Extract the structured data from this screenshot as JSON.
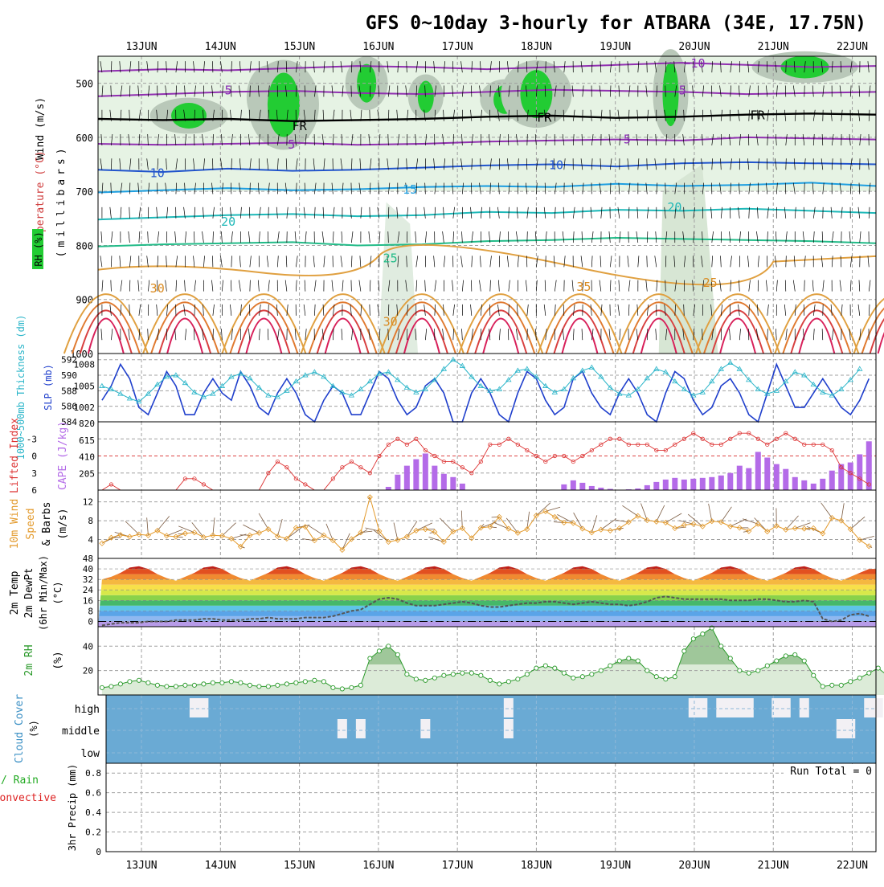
{
  "title": "GFS 0~10day 3-hourly for ATBARA (34E, 17.75N)",
  "dates": [
    "13JUN",
    "14JUN",
    "15JUN",
    "16JUN",
    "17JUN",
    "18JUN",
    "19JUN",
    "20JUN",
    "21JUN",
    "22JUN"
  ],
  "colors": {
    "grid": "#a0a0a0",
    "frame": "#000000",
    "rh_green": "#22cc33",
    "cloud": "#6aaad4",
    "cape": "#b46be8",
    "li": "#dd3333",
    "slp": "#1f3fcc",
    "thick": "#2ab5c9",
    "wind": "#e39a2c",
    "rh2m": "#2b9a2b",
    "precip_total": "#22aa22",
    "precip_conv": "#dd2222"
  },
  "panels": {
    "upper": {
      "label_wind": "Wind (m/s)",
      "label_temp": "Temperature (°C)",
      "label_rh": "RH (%)",
      "label_mb": "(millibars)",
      "ylim": [
        1000,
        450
      ],
      "ticks": [
        500,
        600,
        700,
        800,
        900,
        1000
      ],
      "contour_labels": [
        {
          "t": "−10",
          "day": 20.0,
          "p": 462
        },
        {
          "t": "5",
          "day": 14.1,
          "p": 512
        },
        {
          "t": "5",
          "day": 19.85,
          "p": 512
        },
        {
          "t": "FR",
          "day": 15.0,
          "p": 578
        },
        {
          "t": "FR",
          "day": 18.1,
          "p": 562
        },
        {
          "t": "FR",
          "day": 20.8,
          "p": 558
        },
        {
          "t": "5",
          "day": 14.9,
          "p": 612
        },
        {
          "t": "5",
          "day": 19.15,
          "p": 602
        },
        {
          "t": "10",
          "day": 13.2,
          "p": 665
        },
        {
          "t": "10",
          "day": 18.25,
          "p": 650
        },
        {
          "t": "15",
          "day": 16.4,
          "p": 695
        },
        {
          "t": "20",
          "day": 14.1,
          "p": 755
        },
        {
          "t": "20",
          "day": 19.75,
          "p": 728
        },
        {
          "t": "25",
          "day": 16.15,
          "p": 822
        },
        {
          "t": "25",
          "day": 20.2,
          "p": 868
        },
        {
          "t": "30",
          "day": 13.2,
          "p": 878
        },
        {
          "t": "35",
          "day": 18.6,
          "p": 875
        },
        {
          "t": "30",
          "day": 16.15,
          "p": 940
        }
      ],
      "isotherms": [
        {
          "color": "#9030b0",
          "p": [
            478,
            474,
            476,
            472,
            468,
            470,
            474,
            470,
            466,
            462,
            466,
            470,
            468
          ]
        },
        {
          "color": "#9030b0",
          "p": [
            524,
            520,
            516,
            514,
            518,
            520,
            516,
            512,
            514,
            516,
            520,
            518,
            516
          ]
        },
        {
          "color": "#000000",
          "p": [
            566,
            568,
            566,
            570,
            568,
            566,
            562,
            560,
            564,
            562,
            558,
            556,
            558
          ]
        },
        {
          "color": "#9030b0",
          "p": [
            612,
            614,
            612,
            610,
            614,
            612,
            608,
            606,
            604,
            606,
            600,
            602,
            604
          ]
        },
        {
          "color": "#2255cc",
          "p": [
            660,
            664,
            658,
            662,
            660,
            656,
            652,
            650,
            654,
            648,
            646,
            648,
            650
          ]
        },
        {
          "color": "#1e9ee0",
          "p": [
            702,
            698,
            694,
            698,
            696,
            692,
            690,
            692,
            686,
            690,
            688,
            684,
            690
          ]
        },
        {
          "color": "#1fb8b8",
          "p": [
            752,
            748,
            744,
            742,
            746,
            744,
            738,
            740,
            734,
            736,
            732,
            736,
            740
          ]
        },
        {
          "color": "#22bb88",
          "p": [
            802,
            798,
            796,
            794,
            800,
            798,
            792,
            790,
            786,
            788,
            790,
            792,
            796
          ]
        }
      ]
    },
    "slp": {
      "label_thick": "1000~500mb Thickness (dm)",
      "label_slp": "SLP (mb)",
      "left_ticks": [
        584,
        586,
        588,
        590,
        592
      ],
      "right_ticks": [
        1002,
        1005,
        1008
      ],
      "slp_values": [
        1003,
        1005,
        1008,
        1006,
        1002,
        1001,
        1004,
        1007,
        1005,
        1001,
        1001,
        1004,
        1006,
        1004,
        1003,
        1007,
        1005,
        1002,
        1001,
        1004,
        1006,
        1004,
        1001,
        1000,
        1003,
        1005,
        1004,
        1001,
        1001,
        1004,
        1007,
        1006,
        1003,
        1001,
        1002,
        1005,
        1006,
        1004,
        1000,
        1000,
        1004,
        1006,
        1004,
        1001,
        1000,
        1004,
        1007,
        1006,
        1003,
        1001,
        1002,
        1006,
        1007,
        1004,
        1002,
        1001,
        1004,
        1006,
        1004,
        1001,
        1000,
        1004,
        1007,
        1006,
        1003,
        1001,
        1002,
        1005,
        1006,
        1004,
        1001,
        1000,
        1004,
        1008,
        1005,
        1002,
        1002,
        1004,
        1006,
        1004,
        1002,
        1001,
        1003,
        1006
      ],
      "thick_values": [
        588.6,
        588.2,
        587.6,
        587.0,
        586.6,
        587.6,
        588.8,
        589.8,
        590.0,
        589.0,
        587.8,
        587.2,
        587.6,
        588.6,
        589.8,
        590.2,
        589.6,
        588.4,
        587.4,
        587.2,
        588.0,
        589.2,
        590.0,
        590.4,
        589.8,
        588.6,
        587.8,
        587.4,
        588.2,
        589.2,
        590.2,
        590.4,
        589.4,
        588.4,
        587.8,
        588.2,
        589.4,
        590.8,
        592.0,
        591.2,
        589.8,
        588.6,
        588.0,
        588.2,
        589.4,
        590.6,
        590.8,
        589.8,
        588.6,
        587.8,
        588.2,
        589.6,
        590.6,
        591.0,
        589.8,
        588.4,
        587.6,
        587.4,
        588.2,
        589.6,
        590.8,
        590.4,
        589.2,
        588.2,
        587.4,
        587.8,
        589.2,
        590.8,
        591.6,
        590.8,
        589.4,
        588.2,
        587.6,
        588.0,
        589.2,
        590.4,
        590.0,
        588.8,
        587.8,
        587.4,
        588.2,
        589.4,
        590.8
      ]
    },
    "cape": {
      "label_li": "Lifted Index",
      "label_cape": "CAPE (J/kg)",
      "li_ticks": [
        -3,
        0,
        3,
        6
      ],
      "cape_ticks": [
        205,
        410,
        615,
        820
      ],
      "li_values": [
        6,
        5,
        6,
        6,
        6,
        6,
        6,
        6,
        6,
        4,
        4,
        5,
        6,
        6,
        6,
        6,
        6,
        6,
        3,
        1,
        2,
        4,
        5,
        6,
        6,
        4,
        2,
        1,
        2,
        3,
        0,
        -2,
        -3,
        -2,
        -3,
        -1,
        0,
        1,
        1,
        2,
        3,
        1,
        -2,
        -2,
        -3,
        -2,
        -1,
        0,
        1,
        0,
        0,
        1,
        0,
        -1,
        -2,
        -3,
        -3,
        -2,
        -2,
        -2,
        -1,
        -1,
        -2,
        -3,
        -4,
        -3,
        -2,
        -2,
        -3,
        -4,
        -4,
        -3,
        -2,
        -3,
        -4,
        -3,
        -2,
        -2,
        -2,
        -1,
        2,
        3,
        4,
        5
      ],
      "cape_bars": [
        0,
        0,
        0,
        0,
        0,
        0,
        0,
        0,
        0,
        0,
        0,
        0,
        0,
        0,
        0,
        0,
        0,
        0,
        0,
        0,
        0,
        0,
        0,
        0,
        0,
        0,
        0,
        0,
        0,
        0,
        0,
        40,
        190,
        300,
        380,
        450,
        300,
        200,
        160,
        80,
        0,
        0,
        0,
        0,
        0,
        0,
        0,
        0,
        0,
        0,
        70,
        120,
        90,
        50,
        30,
        15,
        5,
        10,
        20,
        60,
        100,
        130,
        150,
        130,
        140,
        150,
        160,
        180,
        210,
        300,
        270,
        470,
        400,
        320,
        260,
        160,
        120,
        80,
        140,
        240,
        320,
        340,
        440,
        600
      ]
    },
    "wind10": {
      "label": "10m Wind Speed & Barbs",
      "unit": "(m/s)",
      "ticks": [
        4,
        8,
        12
      ],
      "values": [
        3.2,
        4.4,
        5.0,
        4.6,
        5.1,
        4.9,
        5.9,
        4.8,
        4.6,
        5.3,
        5.5,
        4.5,
        4.9,
        4.8,
        4.2,
        2.5,
        4.9,
        5.4,
        6.2,
        4.7,
        4.2,
        6.5,
        6.7,
        3.8,
        4.9,
        3.8,
        1.8,
        4.1,
        5.5,
        13.0,
        5.8,
        3.5,
        3.9,
        4.6,
        5.9,
        6.2,
        5.6,
        3.5,
        5.7,
        6.4,
        4.3,
        6.5,
        6.7,
        8.8,
        6.3,
        5.4,
        6.2,
        9.1,
        10.0,
        8.8,
        7.6,
        7.5,
        6.3,
        5.5,
        6.1,
        5.9,
        6.4,
        7.7,
        9.0,
        8.1,
        7.8,
        7.6,
        6.4,
        7.1,
        7.3,
        6.8,
        7.9,
        7.7,
        6.8,
        6.5,
        5.8,
        7.3,
        5.7,
        6.9,
        6.1,
        6.4,
        6.3,
        6.4,
        5.3,
        8.6,
        8.0,
        6.2,
        3.9,
        2.6
      ]
    },
    "temp2m": {
      "label_temp": "2m Temp",
      "label_dew": "2m DewPt",
      "label_minmax": "(6hr Min/Max)",
      "unit": "(°C)",
      "ticks": [
        0,
        8,
        16,
        24,
        32,
        40,
        48
      ],
      "temp_values": [
        32,
        34,
        37,
        41,
        42,
        40,
        36,
        33,
        31,
        34,
        37,
        41,
        42,
        40,
        36,
        33,
        31,
        34,
        37,
        41,
        42,
        40,
        36,
        33,
        31,
        34,
        37,
        41,
        42,
        40,
        36,
        33,
        31,
        34,
        37,
        41,
        42,
        40,
        36,
        33,
        31,
        34,
        37,
        41,
        42,
        40,
        36,
        33,
        31,
        34,
        37,
        41,
        42,
        40,
        36,
        33,
        31,
        34,
        37,
        41,
        42,
        40,
        36,
        33,
        31,
        34,
        37,
        41,
        42,
        40,
        36,
        33,
        31,
        34,
        37,
        41,
        42,
        40,
        36,
        33,
        31,
        34,
        37,
        40
      ],
      "dew_values": [
        -3,
        -2,
        -1,
        -1,
        -1,
        0,
        0,
        0,
        1,
        1,
        1,
        2,
        2,
        1,
        1,
        1,
        2,
        2,
        3,
        2,
        2,
        2,
        3,
        3,
        3,
        4,
        6,
        8,
        9,
        13,
        17,
        18,
        17,
        14,
        12,
        12,
        12,
        13,
        14,
        15,
        14,
        12,
        11,
        11,
        12,
        13,
        14,
        14,
        15,
        15,
        14,
        13,
        14,
        15,
        14,
        13,
        13,
        12,
        13,
        15,
        18,
        19,
        18,
        17,
        17,
        17,
        17,
        17,
        16,
        16,
        16,
        17,
        17,
        16,
        15,
        15,
        16,
        15,
        2,
        0,
        1,
        5,
        6,
        4
      ]
    },
    "rh2m": {
      "label": "2m RH",
      "unit": "(%)",
      "ticks": [
        20,
        40
      ],
      "values": [
        6,
        7,
        9,
        11,
        12,
        10,
        8,
        7,
        7,
        8,
        8,
        9,
        10,
        10,
        11,
        10,
        8,
        7,
        7,
        8,
        9,
        10,
        11,
        12,
        11,
        6,
        5,
        6,
        8,
        30,
        36,
        40,
        33,
        17,
        13,
        12,
        14,
        16,
        17,
        18,
        18,
        16,
        12,
        9,
        11,
        13,
        17,
        22,
        24,
        22,
        18,
        14,
        15,
        17,
        20,
        24,
        28,
        30,
        28,
        20,
        15,
        13,
        15,
        36,
        46,
        50,
        55,
        40,
        30,
        20,
        18,
        20,
        24,
        28,
        32,
        33,
        28,
        16,
        7,
        8,
        8,
        11,
        14,
        18,
        22,
        16,
        9
      ]
    },
    "cloud": {
      "label": "Cloud Cover",
      "unit": "(%)",
      "levels": [
        "high",
        "middle",
        "low"
      ],
      "high": [
        0,
        0,
        0,
        0,
        0,
        0,
        0,
        0,
        0,
        0,
        1,
        1,
        0,
        0,
        0,
        0,
        0,
        0,
        0,
        0,
        0,
        0,
        0,
        0,
        0,
        0,
        0,
        0,
        0,
        0,
        0,
        0,
        0,
        0,
        0,
        0,
        0,
        0,
        0,
        0,
        0,
        0,
        0,
        0,
        1,
        0,
        0,
        0,
        0,
        0,
        0,
        0,
        0,
        0,
        0,
        0,
        0,
        0,
        0,
        0,
        0,
        0,
        0,
        0,
        1,
        1,
        0,
        1,
        1,
        1,
        1,
        0,
        0,
        1,
        1,
        0,
        1,
        0,
        0,
        0,
        0,
        0,
        0,
        1,
        1
      ],
      "mid": [
        0,
        0,
        0,
        0,
        0,
        0,
        0,
        0,
        0,
        0,
        0,
        0,
        0,
        0,
        0,
        0,
        0,
        0,
        0,
        0,
        0,
        0,
        0,
        0,
        0,
        0,
        1,
        0,
        1,
        0,
        0,
        0,
        0,
        0,
        0,
        1,
        0,
        0,
        0,
        0,
        0,
        0,
        0,
        0,
        1,
        0,
        0,
        0,
        0,
        0,
        0,
        0,
        0,
        0,
        0,
        0,
        0,
        0,
        0,
        0,
        0,
        0,
        0,
        0,
        0,
        0,
        0,
        0,
        0,
        0,
        0,
        0,
        0,
        0,
        0,
        0,
        0,
        0,
        0,
        0,
        1,
        1,
        0,
        0,
        0
      ]
    },
    "precip": {
      "label_total": "Total / Rain",
      "label_conv": "Convective",
      "label_main": "3hr Precip (mm)",
      "ticks": [
        0,
        0.2,
        0.4,
        0.6,
        0.8
      ],
      "tick_labels": [
        "0",
        "0.2",
        "0.4",
        "0.6",
        "0.8"
      ],
      "run_total": "Run Total = 0"
    }
  },
  "chart_data": [
    {
      "type": "heatmap",
      "title": "GFS 0~10day 3-hourly for ATBARA (34E, 17.75N)",
      "ylabel": "Wind (m/s) Temperature (°C) RH (%) (millibars)",
      "ylim": [
        1000,
        450
      ],
      "x": [
        "13JUN",
        "14JUN",
        "15JUN",
        "16JUN",
        "17JUN",
        "18JUN",
        "19JUN",
        "20JUN",
        "21JUN",
        "22JUN"
      ],
      "contour_labels": [
        "−10",
        "5",
        "FR",
        "10",
        "15",
        "20",
        "25",
        "30",
        "35"
      ]
    },
    {
      "type": "line",
      "ylabel": "1000~500mb Thickness (dm) / SLP (mb)",
      "ylim": [
        584,
        592
      ],
      "y2lim": [
        1000,
        1009
      ]
    },
    {
      "type": "bar",
      "ylabel": "Lifted Index / CAPE (J/kg)",
      "ylim": [
        6,
        -6
      ],
      "y2lim": [
        0,
        820
      ]
    },
    {
      "type": "line",
      "ylabel": "10m Wind Speed & Barbs (m/s)",
      "ylim": [
        0,
        14
      ]
    },
    {
      "type": "area",
      "ylabel": "2m Temp 2m DewPt (6hr Min/Max) (°C)",
      "ylim": [
        -4,
        48
      ]
    },
    {
      "type": "area",
      "ylabel": "2m RH (%)",
      "ylim": [
        0,
        55
      ]
    },
    {
      "type": "bar",
      "ylabel": "Cloud Cover (%)",
      "categories": [
        "high",
        "middle",
        "low"
      ]
    },
    {
      "type": "bar",
      "ylabel": "3hr Precip (mm)",
      "ylim": [
        0,
        0.9
      ],
      "annotation": "Run Total = 0"
    }
  ]
}
